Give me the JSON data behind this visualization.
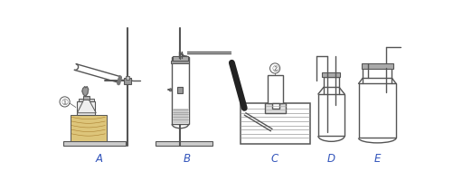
{
  "bg_color": "#ffffff",
  "lc": "#555555",
  "dark": "#222222",
  "gray": "#aaaaaa",
  "lgray": "#cccccc",
  "blue": "#3355bb",
  "label_A": "A",
  "label_B": "B",
  "label_C": "C",
  "label_D": "D",
  "label_E": "E",
  "c1": "①",
  "c2": "②",
  "figsize": [
    5.01,
    2.01
  ],
  "dpi": 100
}
